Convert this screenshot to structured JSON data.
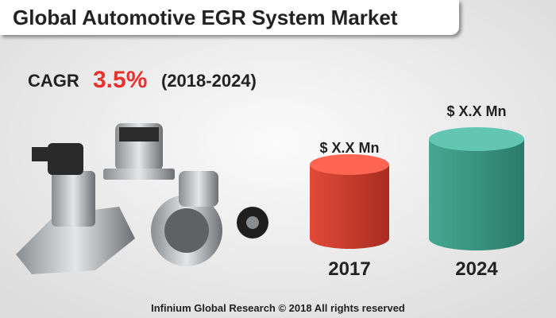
{
  "header": {
    "title": "Global Automotive EGR System Market"
  },
  "cagr": {
    "label": "CAGR",
    "value": "3.5%",
    "period": "(2018-2024)"
  },
  "bars": [
    {
      "label": "$ X.X Mn",
      "year": "2017"
    },
    {
      "label": "$ X.X Mn",
      "year": "2024"
    }
  ],
  "footer": {
    "text": "Infinium Global Research © 2018 All rights reserved"
  }
}
